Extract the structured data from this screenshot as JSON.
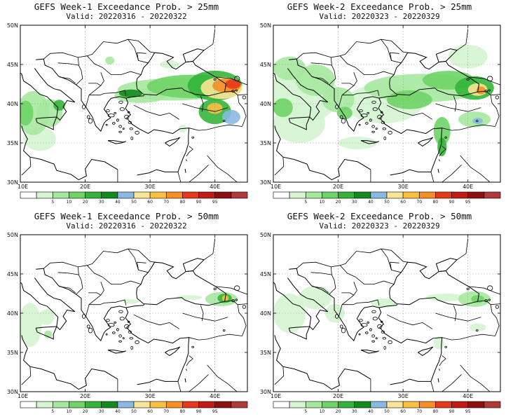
{
  "panels": [
    {
      "id": "w1-25",
      "title": "GEFS Week-1 Exceedance Prob. > 25mm",
      "valid": "Valid: 20220316 - 20220322",
      "blobs": [
        {
          "lon": 33.5,
          "lat": 41.8,
          "rx": 8.5,
          "ry": 1.4,
          "level": 1
        },
        {
          "lon": 36.5,
          "lat": 42.2,
          "rx": 7.0,
          "ry": 1.5,
          "level": 2
        },
        {
          "lon": 28.5,
          "lat": 41.0,
          "rx": 4.0,
          "ry": 0.9,
          "level": 1
        },
        {
          "lon": 27.0,
          "lat": 41.3,
          "rx": 1.8,
          "ry": 0.5,
          "level": 4
        },
        {
          "lon": 40.0,
          "lat": 42.3,
          "rx": 4.2,
          "ry": 1.9,
          "level": 3
        },
        {
          "lon": 41.0,
          "lat": 42.0,
          "rx": 3.2,
          "ry": 1.4,
          "level": 6
        },
        {
          "lon": 41.8,
          "lat": 42.3,
          "rx": 2.2,
          "ry": 0.9,
          "level": 8
        },
        {
          "lon": 42.8,
          "lat": 42.5,
          "rx": 1.2,
          "ry": 0.6,
          "level": 9
        },
        {
          "lon": 40.0,
          "lat": 39.0,
          "rx": 2.5,
          "ry": 1.6,
          "level": 3
        },
        {
          "lon": 40.0,
          "lat": 39.4,
          "rx": 1.2,
          "ry": 0.7,
          "level": 7
        },
        {
          "lon": 42.5,
          "lat": 38.3,
          "rx": 1.4,
          "ry": 0.9,
          "level": 5
        },
        {
          "lon": 12.0,
          "lat": 38.8,
          "rx": 2.5,
          "ry": 2.8,
          "level": 1
        },
        {
          "lon": 10.8,
          "lat": 38.8,
          "rx": 1.2,
          "ry": 1.6,
          "level": 2
        },
        {
          "lon": 14.5,
          "lat": 38.8,
          "rx": 2.0,
          "ry": 1.8,
          "level": 1
        },
        {
          "lon": 16.0,
          "lat": 39.8,
          "rx": 0.9,
          "ry": 0.7,
          "level": 3
        },
        {
          "lon": 13.0,
          "lat": 35.5,
          "rx": 2.5,
          "ry": 1.5,
          "level": 0
        },
        {
          "lon": 23.8,
          "lat": 45.5,
          "rx": 0.7,
          "ry": 0.5,
          "level": 1
        },
        {
          "lon": 33.0,
          "lat": 45.0,
          "rx": 1.5,
          "ry": 0.5,
          "level": 0
        },
        {
          "lon": 35.0,
          "lat": 36.8,
          "rx": 0.6,
          "ry": 0.5,
          "level": 0
        }
      ]
    },
    {
      "id": "w2-25",
      "title": "GEFS Week-2 Exceedance Prob. > 25mm",
      "valid": "Valid: 20220323 - 20220329",
      "blobs": [
        {
          "lon": 14.5,
          "lat": 41.0,
          "rx": 5.5,
          "ry": 3.5,
          "level": 0
        },
        {
          "lon": 14.0,
          "lat": 37.5,
          "rx": 4.0,
          "ry": 2.5,
          "level": 0
        },
        {
          "lon": 16.5,
          "lat": 43.0,
          "rx": 3.0,
          "ry": 2.0,
          "level": 1
        },
        {
          "lon": 12.5,
          "lat": 44.5,
          "rx": 2.5,
          "ry": 1.5,
          "level": 1
        },
        {
          "lon": 11.5,
          "lat": 39.5,
          "rx": 1.5,
          "ry": 1.2,
          "level": 2
        },
        {
          "lon": 20.0,
          "lat": 40.5,
          "rx": 2.5,
          "ry": 1.6,
          "level": 1
        },
        {
          "lon": 21.0,
          "lat": 38.8,
          "rx": 1.2,
          "ry": 0.8,
          "level": 2
        },
        {
          "lon": 27.0,
          "lat": 40.0,
          "rx": 6.0,
          "ry": 2.5,
          "level": 0
        },
        {
          "lon": 33.0,
          "lat": 42.0,
          "rx": 9.0,
          "ry": 1.8,
          "level": 1
        },
        {
          "lon": 31.0,
          "lat": 40.5,
          "rx": 3.5,
          "ry": 1.2,
          "level": 2
        },
        {
          "lon": 37.0,
          "lat": 43.0,
          "rx": 4.0,
          "ry": 1.2,
          "level": 2
        },
        {
          "lon": 41.0,
          "lat": 42.0,
          "rx": 3.0,
          "ry": 1.5,
          "level": 3
        },
        {
          "lon": 41.5,
          "lat": 41.8,
          "rx": 1.5,
          "ry": 0.8,
          "level": 6
        },
        {
          "lon": 42.0,
          "lat": 41.7,
          "rx": 0.7,
          "ry": 0.5,
          "level": 8
        },
        {
          "lon": 36.0,
          "lat": 36.5,
          "rx": 1.3,
          "ry": 1.8,
          "level": 2
        },
        {
          "lon": 36.0,
          "lat": 34.5,
          "rx": 0.7,
          "ry": 1.2,
          "level": 3
        },
        {
          "lon": 41.0,
          "lat": 38.0,
          "rx": 2.5,
          "ry": 1.0,
          "level": 1
        },
        {
          "lon": 41.5,
          "lat": 37.8,
          "rx": 0.8,
          "ry": 0.4,
          "level": 5
        },
        {
          "lon": 23.0,
          "lat": 35.0,
          "rx": 3.0,
          "ry": 0.8,
          "level": 0
        },
        {
          "lon": 40.0,
          "lat": 46.0,
          "rx": 3.0,
          "ry": 1.5,
          "level": 0
        }
      ]
    },
    {
      "id": "w1-50",
      "title": "GEFS Week-1 Exceedance Prob. > 50mm",
      "valid": "Valid: 20220316 - 20220322",
      "blobs": [
        {
          "lon": 11.5,
          "lat": 38.5,
          "rx": 1.8,
          "ry": 2.8,
          "level": 0
        },
        {
          "lon": 14.0,
          "lat": 39.5,
          "rx": 1.2,
          "ry": 1.0,
          "level": 0
        },
        {
          "lon": 14.3,
          "lat": 37.3,
          "rx": 0.6,
          "ry": 0.5,
          "level": 1
        },
        {
          "lon": 41.0,
          "lat": 41.8,
          "rx": 2.5,
          "ry": 0.9,
          "level": 1
        },
        {
          "lon": 41.5,
          "lat": 41.9,
          "rx": 1.1,
          "ry": 0.6,
          "level": 3
        },
        {
          "lon": 41.6,
          "lat": 41.9,
          "rx": 0.5,
          "ry": 0.4,
          "level": 7
        },
        {
          "lon": 27.0,
          "lat": 41.5,
          "rx": 1.2,
          "ry": 0.3,
          "level": 0
        },
        {
          "lon": 36.0,
          "lat": 42.0,
          "rx": 2.0,
          "ry": 0.3,
          "level": 0
        }
      ]
    },
    {
      "id": "w2-50",
      "title": "GEFS Week-2 Exceedance Prob. > 50mm",
      "valid": "Valid: 20220323 - 20220329",
      "blobs": [
        {
          "lon": 12.5,
          "lat": 40.0,
          "rx": 2.5,
          "ry": 2.5,
          "level": 0
        },
        {
          "lon": 16.5,
          "lat": 42.0,
          "rx": 2.5,
          "ry": 1.5,
          "level": 0
        },
        {
          "lon": 19.5,
          "lat": 40.0,
          "rx": 1.5,
          "ry": 1.2,
          "level": 0
        },
        {
          "lon": 27.0,
          "lat": 41.3,
          "rx": 2.0,
          "ry": 0.6,
          "level": 0
        },
        {
          "lon": 41.0,
          "lat": 41.8,
          "rx": 2.5,
          "ry": 1.0,
          "level": 1
        },
        {
          "lon": 41.5,
          "lat": 41.8,
          "rx": 1.0,
          "ry": 0.5,
          "level": 2
        },
        {
          "lon": 36.5,
          "lat": 42.0,
          "rx": 3.0,
          "ry": 0.5,
          "level": 0
        },
        {
          "lon": 35.5,
          "lat": 36.2,
          "rx": 0.8,
          "ry": 0.8,
          "level": 0
        },
        {
          "lon": 41.5,
          "lat": 38.2,
          "rx": 1.3,
          "ry": 0.5,
          "level": 0
        }
      ]
    }
  ],
  "map": {
    "lon_range": [
      10,
      45
    ],
    "lat_range": [
      30,
      50
    ],
    "x_ticks": [
      "10E",
      "20E",
      "30E",
      "40E"
    ],
    "y_ticks": [
      "50N",
      "45N",
      "40N",
      "35N",
      "30N"
    ],
    "land_color": "#ffffff",
    "line_color": "#000000",
    "grid_color": "#999999"
  },
  "colorbar": {
    "colors": [
      "#ffffff",
      "#d4f5d0",
      "#a6e89e",
      "#6ed465",
      "#34b53a",
      "#128a1c",
      "#8ab8e0",
      "#fae596",
      "#fac040",
      "#f58f24",
      "#e8381a",
      "#c21a14",
      "#8c1010",
      "#b03a3a"
    ],
    "labels": [
      "5",
      "10",
      "20",
      "30",
      "40",
      "50",
      "60",
      "70",
      "80",
      "90",
      "95"
    ]
  }
}
